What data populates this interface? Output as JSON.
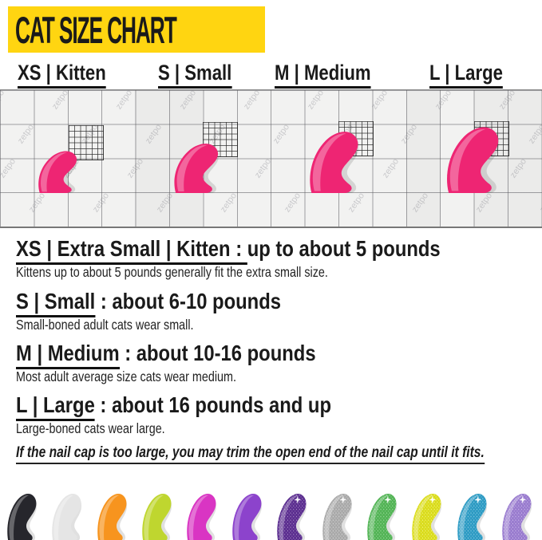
{
  "banner": {
    "title": "CAT SIZE CHART",
    "bg": "#FFD511",
    "fg": "#1a1a1a"
  },
  "size_headers": [
    {
      "label": "XS | Kitten"
    },
    {
      "label": "S | Small"
    },
    {
      "label": "M | Medium"
    },
    {
      "label": "L | Large"
    }
  ],
  "grid": {
    "watermark": "zetpo"
  },
  "sections": [
    {
      "heading_underlined": "XS | Extra Small | Kitten : ",
      "heading_rest": " up to about 5 pounds",
      "body": "Kittens up to about 5 pounds generally fit the extra small size."
    },
    {
      "heading_underlined": "S | Small",
      "heading_rest": " : about 6-10 pounds",
      "body": "Small-boned adult cats wear small."
    },
    {
      "heading_underlined": "M | Medium",
      "heading_rest": " : about 10-16 pounds",
      "body": "Most adult average size cats wear medium."
    },
    {
      "heading_underlined": "L | Large",
      "heading_rest": " : about 16 pounds and up",
      "body": "Large-boned cats wear large."
    }
  ],
  "note": "If the nail cap is too large, you may trim the open end of the nail cap until it fits.",
  "colors": {
    "banner_bg": "#FFD511",
    "display_cap_pink": "#EE2573",
    "grid_bg": "#f2f2f1"
  },
  "bottom_caps": [
    {
      "name": "black",
      "color": "#26262C",
      "glitter": false
    },
    {
      "name": "white",
      "color": "#E5E5E5",
      "glitter": false
    },
    {
      "name": "orange",
      "color": "#F7941E",
      "glitter": false
    },
    {
      "name": "lime-green",
      "color": "#BFD62F",
      "glitter": false
    },
    {
      "name": "magenta",
      "color": "#D935C3",
      "glitter": false
    },
    {
      "name": "purple",
      "color": "#8C43CC",
      "glitter": false
    },
    {
      "name": "purple-glitter",
      "color": "#5C2E91",
      "glitter": true
    },
    {
      "name": "silver-glitter",
      "color": "#ACACAC",
      "glitter": true
    },
    {
      "name": "green-glitter",
      "color": "#53B656",
      "glitter": true
    },
    {
      "name": "yellow-glitter",
      "color": "#DDDF1D",
      "glitter": true
    },
    {
      "name": "blue-glitter",
      "color": "#2E9DC6",
      "glitter": true
    },
    {
      "name": "lavender-glitter",
      "color": "#9B7DD1",
      "glitter": true
    }
  ]
}
